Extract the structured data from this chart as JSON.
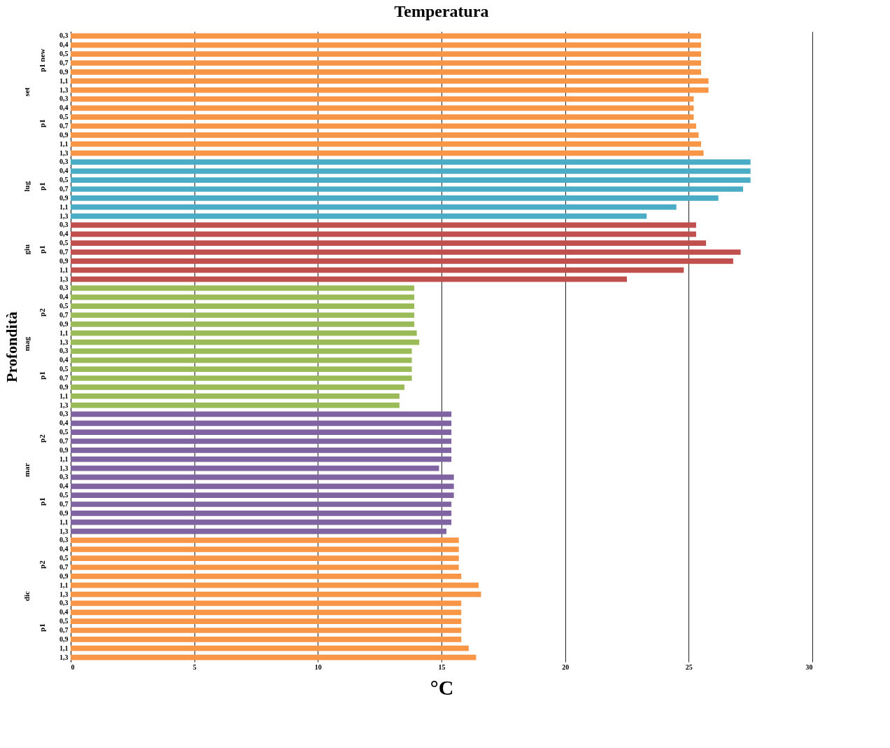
{
  "chart_data": {
    "type": "bar",
    "orientation": "horizontal",
    "title": "Temperatura",
    "xlabel": "°C",
    "ylabel": "Profondità",
    "categories": [
      "0,3",
      "0,4",
      "0,5",
      "0,7",
      "0,9",
      "1,1",
      "1,3",
      "0,3",
      "0,4",
      "0,5",
      "0,7",
      "0,9",
      "1,1",
      "1,3",
      "0,3",
      "0,4",
      "0,5",
      "0,7",
      "0,9",
      "1,1",
      "1,3",
      "0,3",
      "0,4",
      "0,5",
      "0,7",
      "0,9",
      "1,1",
      "1,3",
      "0,3",
      "0,4",
      "0,5",
      "0,7",
      "0,9",
      "1,1",
      "1,3",
      "0,3",
      "0,4",
      "0,5",
      "0,7",
      "0,9",
      "1,1",
      "1,3",
      "0,3",
      "0,4",
      "0,5",
      "0,7",
      "0,9",
      "1,1",
      "1,3",
      "0,3",
      "0,4",
      "0,5",
      "0,7",
      "0,9",
      "1,1",
      "1,3",
      "0,3",
      "0,4",
      "0,5",
      "0,7",
      "0,9",
      "1,1",
      "1,3",
      "0,3",
      "0,4",
      "0,5",
      "0,7",
      "0,9",
      "1,1",
      "1,3"
    ],
    "series": [
      {
        "color": "#f79646",
        "values": [
          25.5,
          25.5,
          25.5,
          25.5,
          25.5,
          25.8,
          25.8,
          25.2,
          25.2,
          25.2,
          25.3,
          25.4,
          25.5,
          25.6,
          null,
          null,
          null,
          null,
          null,
          null,
          null,
          null,
          null,
          null,
          null,
          null,
          null,
          null,
          null,
          null,
          null,
          null,
          null,
          null,
          null,
          null,
          null,
          null,
          null,
          null,
          null,
          null,
          null,
          null,
          null,
          null,
          null,
          null,
          null,
          null,
          null,
          null,
          null,
          null,
          null,
          null,
          null,
          null,
          null,
          null,
          null,
          null,
          null,
          null,
          null,
          null,
          null,
          null,
          null,
          null
        ]
      },
      {
        "color": "#4bacc6",
        "values": [
          null,
          null,
          null,
          null,
          null,
          null,
          null,
          null,
          null,
          null,
          null,
          null,
          null,
          null,
          27.5,
          27.5,
          27.5,
          27.2,
          26.2,
          24.5,
          23.3,
          null,
          null,
          null,
          null,
          null,
          null,
          null,
          null,
          null,
          null,
          null,
          null,
          null,
          null,
          null,
          null,
          null,
          null,
          null,
          null,
          null,
          null,
          null,
          null,
          null,
          null,
          null,
          null,
          null,
          null,
          null,
          null,
          null,
          null,
          null,
          null,
          null,
          null,
          null,
          null,
          null,
          null,
          null,
          null,
          null,
          null,
          null,
          null,
          null
        ]
      },
      {
        "color": "#c0504d",
        "values": [
          null,
          null,
          null,
          null,
          null,
          null,
          null,
          null,
          null,
          null,
          null,
          null,
          null,
          null,
          null,
          null,
          null,
          null,
          null,
          null,
          null,
          25.3,
          25.3,
          25.7,
          27.1,
          26.8,
          24.8,
          22.5,
          null,
          null,
          null,
          null,
          null,
          null,
          null,
          null,
          null,
          null,
          null,
          null,
          null,
          null,
          null,
          null,
          null,
          null,
          null,
          null,
          null,
          null,
          null,
          null,
          null,
          null,
          null,
          null,
          null,
          null,
          null,
          null,
          null,
          null,
          null,
          null,
          null,
          null,
          null,
          null,
          null,
          null
        ]
      },
      {
        "color": "#9bbb59",
        "values": [
          null,
          null,
          null,
          null,
          null,
          null,
          null,
          null,
          null,
          null,
          null,
          null,
          null,
          null,
          null,
          null,
          null,
          null,
          null,
          null,
          null,
          null,
          null,
          null,
          null,
          null,
          null,
          null,
          13.9,
          13.9,
          13.9,
          13.9,
          13.9,
          14.0,
          14.1,
          13.8,
          13.8,
          13.8,
          13.8,
          13.5,
          13.3,
          13.3,
          null,
          null,
          null,
          null,
          null,
          null,
          null,
          null,
          null,
          null,
          null,
          null,
          null,
          null,
          null,
          null,
          null,
          null,
          null,
          null,
          null,
          null,
          null,
          null,
          null,
          null,
          null,
          null
        ]
      },
      {
        "color": "#8064a2",
        "values": [
          null,
          null,
          null,
          null,
          null,
          null,
          null,
          null,
          null,
          null,
          null,
          null,
          null,
          null,
          null,
          null,
          null,
          null,
          null,
          null,
          null,
          null,
          null,
          null,
          null,
          null,
          null,
          null,
          null,
          null,
          null,
          null,
          null,
          null,
          null,
          null,
          null,
          null,
          null,
          null,
          null,
          null,
          15.4,
          15.4,
          15.4,
          15.4,
          15.4,
          15.4,
          14.9,
          15.5,
          15.5,
          15.5,
          15.4,
          15.4,
          15.4,
          15.2,
          null,
          null,
          null,
          null,
          null,
          null,
          null,
          null,
          null,
          null,
          null,
          null,
          null,
          null
        ]
      },
      {
        "color": "#f79646",
        "values": [
          null,
          null,
          null,
          null,
          null,
          null,
          null,
          null,
          null,
          null,
          null,
          null,
          null,
          null,
          null,
          null,
          null,
          null,
          null,
          null,
          null,
          null,
          null,
          null,
          null,
          null,
          null,
          null,
          null,
          null,
          null,
          null,
          null,
          null,
          null,
          null,
          null,
          null,
          null,
          null,
          null,
          null,
          null,
          null,
          null,
          null,
          null,
          null,
          null,
          null,
          null,
          null,
          null,
          null,
          null,
          null,
          15.7,
          15.7,
          15.7,
          15.7,
          15.8,
          16.5,
          16.6,
          15.8,
          15.8,
          15.8,
          15.8,
          15.8,
          16.1,
          16.4
        ]
      }
    ],
    "annotations": [
      "p1 new",
      "p1",
      "p1",
      "p1",
      "p2",
      "p1",
      "p2",
      "p1",
      "p2",
      "p1",
      "set",
      "lug",
      "giu",
      "mag",
      "mar",
      "dic"
    ],
    "xlim": [
      0,
      30
    ],
    "xticks": [
      0,
      5,
      10,
      15,
      20,
      25,
      30
    ],
    "grid": "x"
  }
}
